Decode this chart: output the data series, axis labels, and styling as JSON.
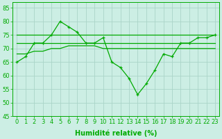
{
  "x": [
    0,
    1,
    2,
    3,
    4,
    5,
    6,
    7,
    8,
    9,
    10,
    11,
    12,
    13,
    14,
    15,
    16,
    17,
    18,
    19,
    20,
    21,
    22,
    23
  ],
  "line_main": [
    65,
    67,
    72,
    72,
    75,
    80,
    78,
    76,
    72,
    72,
    74,
    65,
    63,
    59,
    53,
    57,
    62,
    68,
    67,
    72,
    72,
    74,
    74,
    75
  ],
  "line_top": [
    75,
    75,
    75,
    75,
    75,
    75,
    75,
    75,
    75,
    75,
    75,
    75,
    75,
    75,
    75,
    75,
    75,
    75,
    75,
    75,
    75,
    75,
    75,
    75
  ],
  "line_mid1": [
    72,
    72,
    72,
    72,
    72,
    72,
    72,
    72,
    72,
    72,
    72,
    72,
    72,
    72,
    72,
    72,
    72,
    72,
    72,
    72,
    72,
    72,
    72,
    72
  ],
  "line_mid2": [
    68,
    68,
    69,
    69,
    70,
    70,
    71,
    71,
    71,
    71,
    70,
    70,
    70,
    70,
    70,
    70,
    70,
    70,
    70,
    70,
    70,
    70,
    70,
    70
  ],
  "ylim": [
    45,
    87
  ],
  "yticks": [
    45,
    50,
    55,
    60,
    65,
    70,
    75,
    80,
    85
  ],
  "bg_color": "#cceee4",
  "grid_color": "#aad4c8",
  "line_color": "#00aa00",
  "xlabel": "Humidité relative (%)",
  "xlabel_fontsize": 7,
  "tick_fontsize": 6
}
